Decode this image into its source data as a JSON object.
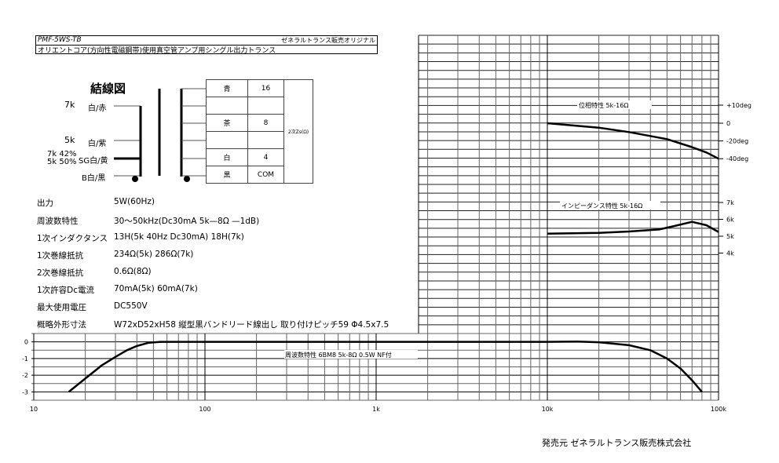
{
  "header": {
    "model": "PMF-5WS-TB",
    "brand_note": "ゼネラルトランス販売オリジナル",
    "description": "オリエントコア(方向性電磁鋼帯)使用真空管アンプ用シングル出力トランス"
  },
  "wiring": {
    "title": "結線図",
    "primary_taps": [
      {
        "impedance": "7k",
        "color": "白/赤"
      },
      {
        "impedance": "5k",
        "color": "白/紫"
      },
      {
        "impedance": "7k 42%\n5k 50%",
        "impedance_line1": "7k 42%",
        "impedance_line2": "5k 50%",
        "color": "SG白/黄"
      },
      {
        "impedance": "",
        "color": "B白/黒"
      }
    ],
    "secondary_table": {
      "rows": [
        {
          "color": "青",
          "value": "16"
        },
        {
          "color": "",
          "value": ""
        },
        {
          "color": "茶",
          "value": "8"
        },
        {
          "color": "",
          "value": ""
        },
        {
          "color": "白",
          "value": "4"
        },
        {
          "color": "黒",
          "value": "COM"
        }
      ],
      "side_label": "2次Zs(Ω)"
    }
  },
  "specs": [
    {
      "label": "出力",
      "value": "5W(60Hz)"
    },
    {
      "label": "周波数特性",
      "value": "30〜50kHz(Dc30mA  5k—8Ω  —1dB)"
    },
    {
      "label": "1次インダクタンス",
      "value": "13H(5k 40Hz  Dc30mA)  18H(7k)"
    },
    {
      "label": "1次巻線抵抗",
      "value": "234Ω(5k)  286Ω(7k)"
    },
    {
      "label": "2次巻線抵抗",
      "value": "0.6Ω(8Ω)"
    },
    {
      "label": "1次許容Dc電流",
      "value": "70mA(5k)  60mA(7k)"
    },
    {
      "label": "最大使用電圧",
      "value": "DC550V"
    },
    {
      "label": "概略外形寸法",
      "value": "W72xD52xH58  縦型黒バンドリード線出し     取り付けピッチ59   Φ4.5x7.5"
    }
  ],
  "footer": {
    "publisher": "発売元  ゼネラルトランス販売株式会社"
  },
  "chart_data": [
    {
      "type": "line",
      "title": "周波数特性  6BM8  5k-8Ω  0.5W  NF付",
      "x_scale": "log",
      "xlim": [
        10,
        100000
      ],
      "x_ticks": [
        10,
        100,
        1000,
        10000,
        100000
      ],
      "x_tick_labels": [
        "10",
        "100",
        "1k",
        "10k",
        "100k"
      ],
      "ylim": [
        -3.5,
        0.5
      ],
      "y_ticks": [
        0,
        -1,
        -2,
        -3
      ],
      "y_tick_labels": [
        "0",
        "-1",
        "-2",
        "-3"
      ],
      "grid": true,
      "x": [
        16,
        20,
        25,
        30,
        35,
        40,
        47,
        55,
        100,
        1000,
        10000,
        15000,
        20000,
        30000,
        40000,
        50000,
        60000,
        70000,
        80000
      ],
      "y": [
        -3,
        -2.2,
        -1.4,
        -0.9,
        -0.5,
        -0.25,
        -0.05,
        0,
        0,
        0,
        0,
        0.02,
        -0.02,
        -0.2,
        -0.5,
        -1.0,
        -1.6,
        -2.3,
        -3
      ]
    },
    {
      "type": "line",
      "title": "位相特性  5k-16Ω",
      "x_scale": "log",
      "xlim": [
        10,
        100000
      ],
      "y_tick_labels": [
        "+10deg",
        "0",
        "-20deg",
        "-40deg"
      ],
      "y_ticks": [
        10,
        0,
        -20,
        -40
      ],
      "grid": true,
      "x": [
        10000,
        20000,
        30000,
        50000,
        70000,
        85000,
        100000
      ],
      "y": [
        0,
        -5,
        -10,
        -18,
        -27,
        -33,
        -40
      ]
    },
    {
      "type": "line",
      "title": "インピーダンス特性  5k-16Ω",
      "x_scale": "log",
      "xlim": [
        10,
        100000
      ],
      "y_tick_labels": [
        "7k",
        "6k",
        "5k",
        "4k"
      ],
      "y_ticks": [
        7,
        6,
        5,
        4
      ],
      "grid": true,
      "x": [
        10000,
        20000,
        30000,
        45000,
        55000,
        70000,
        85000,
        100000
      ],
      "y": [
        5.15,
        5.2,
        5.28,
        5.4,
        5.6,
        5.85,
        5.65,
        5.25
      ]
    }
  ]
}
